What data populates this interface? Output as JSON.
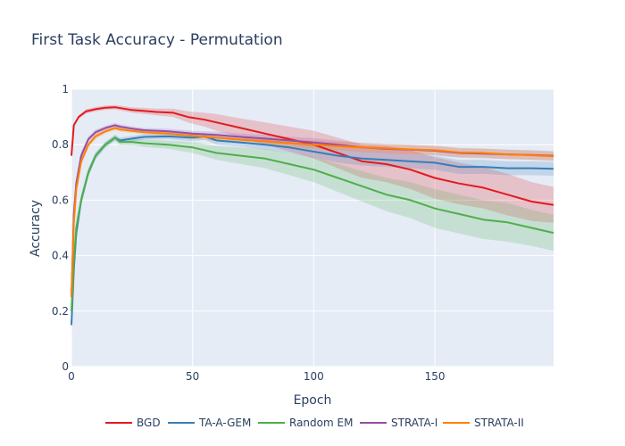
{
  "chart_data": {
    "type": "line",
    "title": "First Task Accuracy - Permutation",
    "xlabel": "Epoch",
    "ylabel": "Accuracy",
    "xlim": [
      0,
      199
    ],
    "ylim": [
      0,
      1
    ],
    "x_ticks": [
      0,
      50,
      100,
      150
    ],
    "y_ticks": [
      0,
      0.2,
      0.4,
      0.6,
      0.8,
      1
    ],
    "y_tick_labels": [
      "0",
      "0.2",
      "0.4",
      "0.6",
      "0.8",
      "1"
    ],
    "grid": true,
    "legend_position": "bottom",
    "background": "#e5ecf6",
    "series": [
      {
        "name": "BGD",
        "color": "#e41a1c",
        "x": [
          0,
          1,
          3,
          6,
          10,
          14,
          18,
          25,
          35,
          42,
          48,
          55,
          60,
          70,
          80,
          90,
          100,
          110,
          120,
          130,
          140,
          150,
          160,
          170,
          180,
          190,
          199
        ],
        "y": [
          0.76,
          0.87,
          0.9,
          0.92,
          0.928,
          0.933,
          0.935,
          0.925,
          0.918,
          0.915,
          0.9,
          0.89,
          0.88,
          0.86,
          0.84,
          0.82,
          0.8,
          0.77,
          0.74,
          0.73,
          0.71,
          0.68,
          0.66,
          0.645,
          0.62,
          0.595,
          0.583
        ],
        "band": [
          0.0,
          0.005,
          0.006,
          0.008,
          0.008,
          0.008,
          0.008,
          0.01,
          0.012,
          0.015,
          0.02,
          0.025,
          0.03,
          0.035,
          0.04,
          0.045,
          0.05,
          0.055,
          0.06,
          0.065,
          0.07,
          0.075,
          0.075,
          0.075,
          0.075,
          0.07,
          0.065
        ]
      },
      {
        "name": "TA-A-GEM",
        "color": "#377eb8",
        "x": [
          0,
          1,
          2,
          4,
          7,
          10,
          14,
          18,
          20,
          25,
          30,
          40,
          50,
          55,
          60,
          70,
          80,
          90,
          100,
          110,
          120,
          130,
          140,
          150,
          160,
          170,
          180,
          190,
          199
        ],
        "y": [
          0.15,
          0.35,
          0.48,
          0.6,
          0.7,
          0.76,
          0.8,
          0.825,
          0.815,
          0.822,
          0.828,
          0.83,
          0.825,
          0.83,
          0.815,
          0.808,
          0.8,
          0.79,
          0.775,
          0.76,
          0.75,
          0.745,
          0.74,
          0.735,
          0.72,
          0.72,
          0.715,
          0.715,
          0.713
        ],
        "band": [
          0.02,
          0.03,
          0.03,
          0.02,
          0.015,
          0.012,
          0.01,
          0.01,
          0.01,
          0.01,
          0.01,
          0.01,
          0.012,
          0.012,
          0.015,
          0.015,
          0.018,
          0.02,
          0.022,
          0.025,
          0.025,
          0.025,
          0.025,
          0.025,
          0.025,
          0.025,
          0.025,
          0.025,
          0.025
        ]
      },
      {
        "name": "Random EM",
        "color": "#4daf4a",
        "x": [
          0,
          1,
          2,
          4,
          7,
          10,
          14,
          18,
          20,
          25,
          30,
          40,
          50,
          60,
          70,
          80,
          90,
          100,
          110,
          120,
          130,
          140,
          150,
          160,
          170,
          180,
          190,
          199
        ],
        "y": [
          0.2,
          0.38,
          0.5,
          0.6,
          0.7,
          0.76,
          0.8,
          0.825,
          0.81,
          0.81,
          0.805,
          0.8,
          0.79,
          0.77,
          0.76,
          0.75,
          0.73,
          0.71,
          0.68,
          0.65,
          0.62,
          0.6,
          0.57,
          0.55,
          0.53,
          0.52,
          0.5,
          0.482
        ],
        "band": [
          0.03,
          0.03,
          0.03,
          0.02,
          0.015,
          0.012,
          0.01,
          0.01,
          0.012,
          0.012,
          0.013,
          0.015,
          0.02,
          0.025,
          0.03,
          0.035,
          0.04,
          0.045,
          0.05,
          0.055,
          0.06,
          0.065,
          0.07,
          0.07,
          0.07,
          0.07,
          0.065,
          0.065
        ]
      },
      {
        "name": "STRATA-I",
        "color": "#984ea3",
        "x": [
          0,
          1,
          2,
          4,
          7,
          10,
          14,
          18,
          20,
          25,
          30,
          40,
          50,
          60,
          70,
          80,
          90,
          100,
          110,
          120,
          130,
          140,
          150,
          160,
          170,
          180,
          190,
          199
        ],
        "y": [
          0.25,
          0.55,
          0.66,
          0.76,
          0.82,
          0.845,
          0.86,
          0.87,
          0.865,
          0.858,
          0.852,
          0.848,
          0.84,
          0.835,
          0.828,
          0.822,
          0.815,
          0.808,
          0.8,
          0.79,
          0.785,
          0.782,
          0.778,
          0.77,
          0.768,
          0.765,
          0.763,
          0.76
        ],
        "band": [
          0.03,
          0.03,
          0.02,
          0.015,
          0.01,
          0.01,
          0.008,
          0.008,
          0.008,
          0.008,
          0.008,
          0.01,
          0.01,
          0.012,
          0.012,
          0.013,
          0.014,
          0.015,
          0.015,
          0.016,
          0.016,
          0.017,
          0.017,
          0.017,
          0.017,
          0.017,
          0.017,
          0.017
        ]
      },
      {
        "name": "STRATA-II",
        "color": "#ff7f00",
        "x": [
          0,
          1,
          2,
          4,
          7,
          10,
          14,
          18,
          20,
          25,
          30,
          40,
          50,
          60,
          70,
          80,
          90,
          100,
          110,
          120,
          130,
          140,
          150,
          160,
          170,
          180,
          190,
          199
        ],
        "y": [
          0.25,
          0.52,
          0.64,
          0.74,
          0.8,
          0.83,
          0.848,
          0.86,
          0.855,
          0.85,
          0.845,
          0.84,
          0.832,
          0.825,
          0.818,
          0.812,
          0.806,
          0.8,
          0.795,
          0.79,
          0.787,
          0.783,
          0.78,
          0.772,
          0.77,
          0.765,
          0.762,
          0.758
        ],
        "band": [
          0.03,
          0.03,
          0.02,
          0.015,
          0.01,
          0.01,
          0.008,
          0.008,
          0.008,
          0.008,
          0.008,
          0.01,
          0.01,
          0.012,
          0.012,
          0.013,
          0.014,
          0.015,
          0.015,
          0.016,
          0.016,
          0.017,
          0.017,
          0.017,
          0.017,
          0.017,
          0.017,
          0.017
        ]
      }
    ]
  }
}
